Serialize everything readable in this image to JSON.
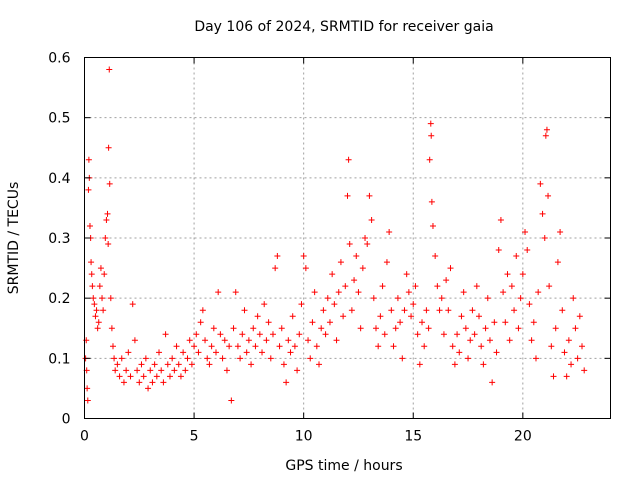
{
  "chart_data": {
    "type": "scatter",
    "title": "Day 106 of 2024, SRMTID for receiver gaia",
    "xlabel": "GPS time / hours",
    "ylabel": "SRMTID / TECUs",
    "xlim": [
      0,
      24
    ],
    "ylim": [
      0,
      0.6
    ],
    "xticks": [
      0,
      5,
      10,
      15,
      20
    ],
    "yticks": [
      0,
      0.1,
      0.2,
      0.3,
      0.4,
      0.5,
      0.6
    ],
    "xtick_labels": [
      "0",
      "5",
      "10",
      "15",
      "20"
    ],
    "ytick_labels": [
      "0",
      "0.1",
      "0.2",
      "0.3",
      "0.4",
      "0.5",
      "0.6"
    ],
    "grid": true,
    "marker": "+",
    "color": "#ff0000",
    "series": [
      {
        "name": "SRMTID",
        "points": [
          [
            0.05,
            0.1
          ],
          [
            0.08,
            0.13
          ],
          [
            0.1,
            0.08
          ],
          [
            0.12,
            0.05
          ],
          [
            0.15,
            0.03
          ],
          [
            0.18,
            0.38
          ],
          [
            0.2,
            0.43
          ],
          [
            0.22,
            0.4
          ],
          [
            0.25,
            0.32
          ],
          [
            0.28,
            0.3
          ],
          [
            0.3,
            0.26
          ],
          [
            0.33,
            0.24
          ],
          [
            0.36,
            0.22
          ],
          [
            0.4,
            0.2
          ],
          [
            0.45,
            0.19
          ],
          [
            0.5,
            0.17
          ],
          [
            0.55,
            0.18
          ],
          [
            0.6,
            0.15
          ],
          [
            0.65,
            0.16
          ],
          [
            0.7,
            0.22
          ],
          [
            0.75,
            0.25
          ],
          [
            0.8,
            0.2
          ],
          [
            0.85,
            0.18
          ],
          [
            0.9,
            0.24
          ],
          [
            0.95,
            0.3
          ],
          [
            1.0,
            0.33
          ],
          [
            1.05,
            0.34
          ],
          [
            1.08,
            0.29
          ],
          [
            1.1,
            0.45
          ],
          [
            1.13,
            0.58
          ],
          [
            1.15,
            0.39
          ],
          [
            1.2,
            0.2
          ],
          [
            1.25,
            0.15
          ],
          [
            1.3,
            0.12
          ],
          [
            1.35,
            0.1
          ],
          [
            1.4,
            0.08
          ],
          [
            1.5,
            0.09
          ],
          [
            1.6,
            0.07
          ],
          [
            1.7,
            0.1
          ],
          [
            1.8,
            0.06
          ],
          [
            1.9,
            0.08
          ],
          [
            2.0,
            0.11
          ],
          [
            2.1,
            0.07
          ],
          [
            2.2,
            0.19
          ],
          [
            2.3,
            0.13
          ],
          [
            2.4,
            0.08
          ],
          [
            2.5,
            0.06
          ],
          [
            2.6,
            0.09
          ],
          [
            2.7,
            0.07
          ],
          [
            2.8,
            0.1
          ],
          [
            2.9,
            0.05
          ],
          [
            3.0,
            0.08
          ],
          [
            3.1,
            0.06
          ],
          [
            3.2,
            0.09
          ],
          [
            3.3,
            0.07
          ],
          [
            3.4,
            0.11
          ],
          [
            3.5,
            0.08
          ],
          [
            3.6,
            0.06
          ],
          [
            3.7,
            0.14
          ],
          [
            3.8,
            0.09
          ],
          [
            3.9,
            0.07
          ],
          [
            4.0,
            0.1
          ],
          [
            4.1,
            0.08
          ],
          [
            4.2,
            0.12
          ],
          [
            4.3,
            0.09
          ],
          [
            4.4,
            0.07
          ],
          [
            4.5,
            0.11
          ],
          [
            4.6,
            0.08
          ],
          [
            4.7,
            0.1
          ],
          [
            4.8,
            0.13
          ],
          [
            4.9,
            0.09
          ],
          [
            5.0,
            0.12
          ],
          [
            5.1,
            0.14
          ],
          [
            5.2,
            0.11
          ],
          [
            5.3,
            0.16
          ],
          [
            5.4,
            0.18
          ],
          [
            5.5,
            0.13
          ],
          [
            5.6,
            0.1
          ],
          [
            5.7,
            0.09
          ],
          [
            5.8,
            0.12
          ],
          [
            5.9,
            0.15
          ],
          [
            6.0,
            0.11
          ],
          [
            6.1,
            0.21
          ],
          [
            6.2,
            0.14
          ],
          [
            6.3,
            0.1
          ],
          [
            6.4,
            0.13
          ],
          [
            6.5,
            0.08
          ],
          [
            6.6,
            0.12
          ],
          [
            6.7,
            0.03
          ],
          [
            6.8,
            0.15
          ],
          [
            6.9,
            0.21
          ],
          [
            7.0,
            0.12
          ],
          [
            7.1,
            0.1
          ],
          [
            7.2,
            0.14
          ],
          [
            7.3,
            0.18
          ],
          [
            7.4,
            0.11
          ],
          [
            7.5,
            0.13
          ],
          [
            7.6,
            0.09
          ],
          [
            7.7,
            0.15
          ],
          [
            7.8,
            0.12
          ],
          [
            7.9,
            0.17
          ],
          [
            8.0,
            0.14
          ],
          [
            8.1,
            0.11
          ],
          [
            8.2,
            0.19
          ],
          [
            8.3,
            0.13
          ],
          [
            8.4,
            0.16
          ],
          [
            8.5,
            0.1
          ],
          [
            8.6,
            0.14
          ],
          [
            8.7,
            0.25
          ],
          [
            8.8,
            0.27
          ],
          [
            8.9,
            0.12
          ],
          [
            9.0,
            0.15
          ],
          [
            9.1,
            0.09
          ],
          [
            9.2,
            0.06
          ],
          [
            9.3,
            0.13
          ],
          [
            9.4,
            0.11
          ],
          [
            9.5,
            0.17
          ],
          [
            9.6,
            0.12
          ],
          [
            9.7,
            0.08
          ],
          [
            9.8,
            0.14
          ],
          [
            9.9,
            0.19
          ],
          [
            10.0,
            0.27
          ],
          [
            10.1,
            0.25
          ],
          [
            10.2,
            0.13
          ],
          [
            10.3,
            0.1
          ],
          [
            10.4,
            0.16
          ],
          [
            10.5,
            0.21
          ],
          [
            10.6,
            0.12
          ],
          [
            10.7,
            0.09
          ],
          [
            10.8,
            0.15
          ],
          [
            10.9,
            0.18
          ],
          [
            11.0,
            0.14
          ],
          [
            11.1,
            0.2
          ],
          [
            11.2,
            0.16
          ],
          [
            11.3,
            0.24
          ],
          [
            11.4,
            0.19
          ],
          [
            11.5,
            0.13
          ],
          [
            11.6,
            0.21
          ],
          [
            11.7,
            0.26
          ],
          [
            11.8,
            0.17
          ],
          [
            11.9,
            0.22
          ],
          [
            12.0,
            0.37
          ],
          [
            12.05,
            0.43
          ],
          [
            12.1,
            0.29
          ],
          [
            12.2,
            0.18
          ],
          [
            12.3,
            0.23
          ],
          [
            12.4,
            0.27
          ],
          [
            12.5,
            0.21
          ],
          [
            12.6,
            0.15
          ],
          [
            12.7,
            0.25
          ],
          [
            12.8,
            0.3
          ],
          [
            12.9,
            0.29
          ],
          [
            13.0,
            0.37
          ],
          [
            13.1,
            0.33
          ],
          [
            13.2,
            0.2
          ],
          [
            13.3,
            0.15
          ],
          [
            13.4,
            0.12
          ],
          [
            13.5,
            0.17
          ],
          [
            13.6,
            0.22
          ],
          [
            13.7,
            0.14
          ],
          [
            13.8,
            0.26
          ],
          [
            13.9,
            0.31
          ],
          [
            14.0,
            0.18
          ],
          [
            14.1,
            0.12
          ],
          [
            14.2,
            0.15
          ],
          [
            14.3,
            0.2
          ],
          [
            14.4,
            0.16
          ],
          [
            14.5,
            0.1
          ],
          [
            14.6,
            0.18
          ],
          [
            14.7,
            0.24
          ],
          [
            14.8,
            0.21
          ],
          [
            14.9,
            0.17
          ],
          [
            15.0,
            0.19
          ],
          [
            15.1,
            0.22
          ],
          [
            15.2,
            0.14
          ],
          [
            15.3,
            0.09
          ],
          [
            15.4,
            0.16
          ],
          [
            15.5,
            0.12
          ],
          [
            15.6,
            0.18
          ],
          [
            15.7,
            0.15
          ],
          [
            15.75,
            0.43
          ],
          [
            15.8,
            0.49
          ],
          [
            15.82,
            0.47
          ],
          [
            15.85,
            0.36
          ],
          [
            15.9,
            0.32
          ],
          [
            16.0,
            0.27
          ],
          [
            16.1,
            0.22
          ],
          [
            16.2,
            0.18
          ],
          [
            16.3,
            0.2
          ],
          [
            16.4,
            0.14
          ],
          [
            16.5,
            0.23
          ],
          [
            16.6,
            0.18
          ],
          [
            16.7,
            0.25
          ],
          [
            16.8,
            0.12
          ],
          [
            16.9,
            0.09
          ],
          [
            17.0,
            0.14
          ],
          [
            17.1,
            0.11
          ],
          [
            17.2,
            0.17
          ],
          [
            17.3,
            0.21
          ],
          [
            17.4,
            0.15
          ],
          [
            17.5,
            0.1
          ],
          [
            17.6,
            0.13
          ],
          [
            17.7,
            0.18
          ],
          [
            17.8,
            0.14
          ],
          [
            17.9,
            0.22
          ],
          [
            18.0,
            0.17
          ],
          [
            18.1,
            0.12
          ],
          [
            18.2,
            0.09
          ],
          [
            18.3,
            0.15
          ],
          [
            18.4,
            0.2
          ],
          [
            18.5,
            0.13
          ],
          [
            18.6,
            0.06
          ],
          [
            18.7,
            0.16
          ],
          [
            18.8,
            0.11
          ],
          [
            18.9,
            0.28
          ],
          [
            19.0,
            0.33
          ],
          [
            19.1,
            0.21
          ],
          [
            19.2,
            0.16
          ],
          [
            19.3,
            0.24
          ],
          [
            19.4,
            0.13
          ],
          [
            19.5,
            0.22
          ],
          [
            19.6,
            0.18
          ],
          [
            19.7,
            0.27
          ],
          [
            19.8,
            0.15
          ],
          [
            19.9,
            0.2
          ],
          [
            20.0,
            0.24
          ],
          [
            20.1,
            0.31
          ],
          [
            20.2,
            0.28
          ],
          [
            20.3,
            0.19
          ],
          [
            20.4,
            0.13
          ],
          [
            20.5,
            0.16
          ],
          [
            20.6,
            0.1
          ],
          [
            20.7,
            0.21
          ],
          [
            20.8,
            0.39
          ],
          [
            20.9,
            0.34
          ],
          [
            21.0,
            0.3
          ],
          [
            21.05,
            0.47
          ],
          [
            21.1,
            0.48
          ],
          [
            21.15,
            0.37
          ],
          [
            21.2,
            0.22
          ],
          [
            21.3,
            0.12
          ],
          [
            21.4,
            0.07
          ],
          [
            21.5,
            0.15
          ],
          [
            21.6,
            0.26
          ],
          [
            21.7,
            0.31
          ],
          [
            21.8,
            0.18
          ],
          [
            21.9,
            0.11
          ],
          [
            22.0,
            0.07
          ],
          [
            22.1,
            0.13
          ],
          [
            22.2,
            0.09
          ],
          [
            22.3,
            0.2
          ],
          [
            22.4,
            0.15
          ],
          [
            22.5,
            0.1
          ],
          [
            22.6,
            0.17
          ],
          [
            22.7,
            0.12
          ],
          [
            22.8,
            0.08
          ]
        ]
      }
    ]
  }
}
